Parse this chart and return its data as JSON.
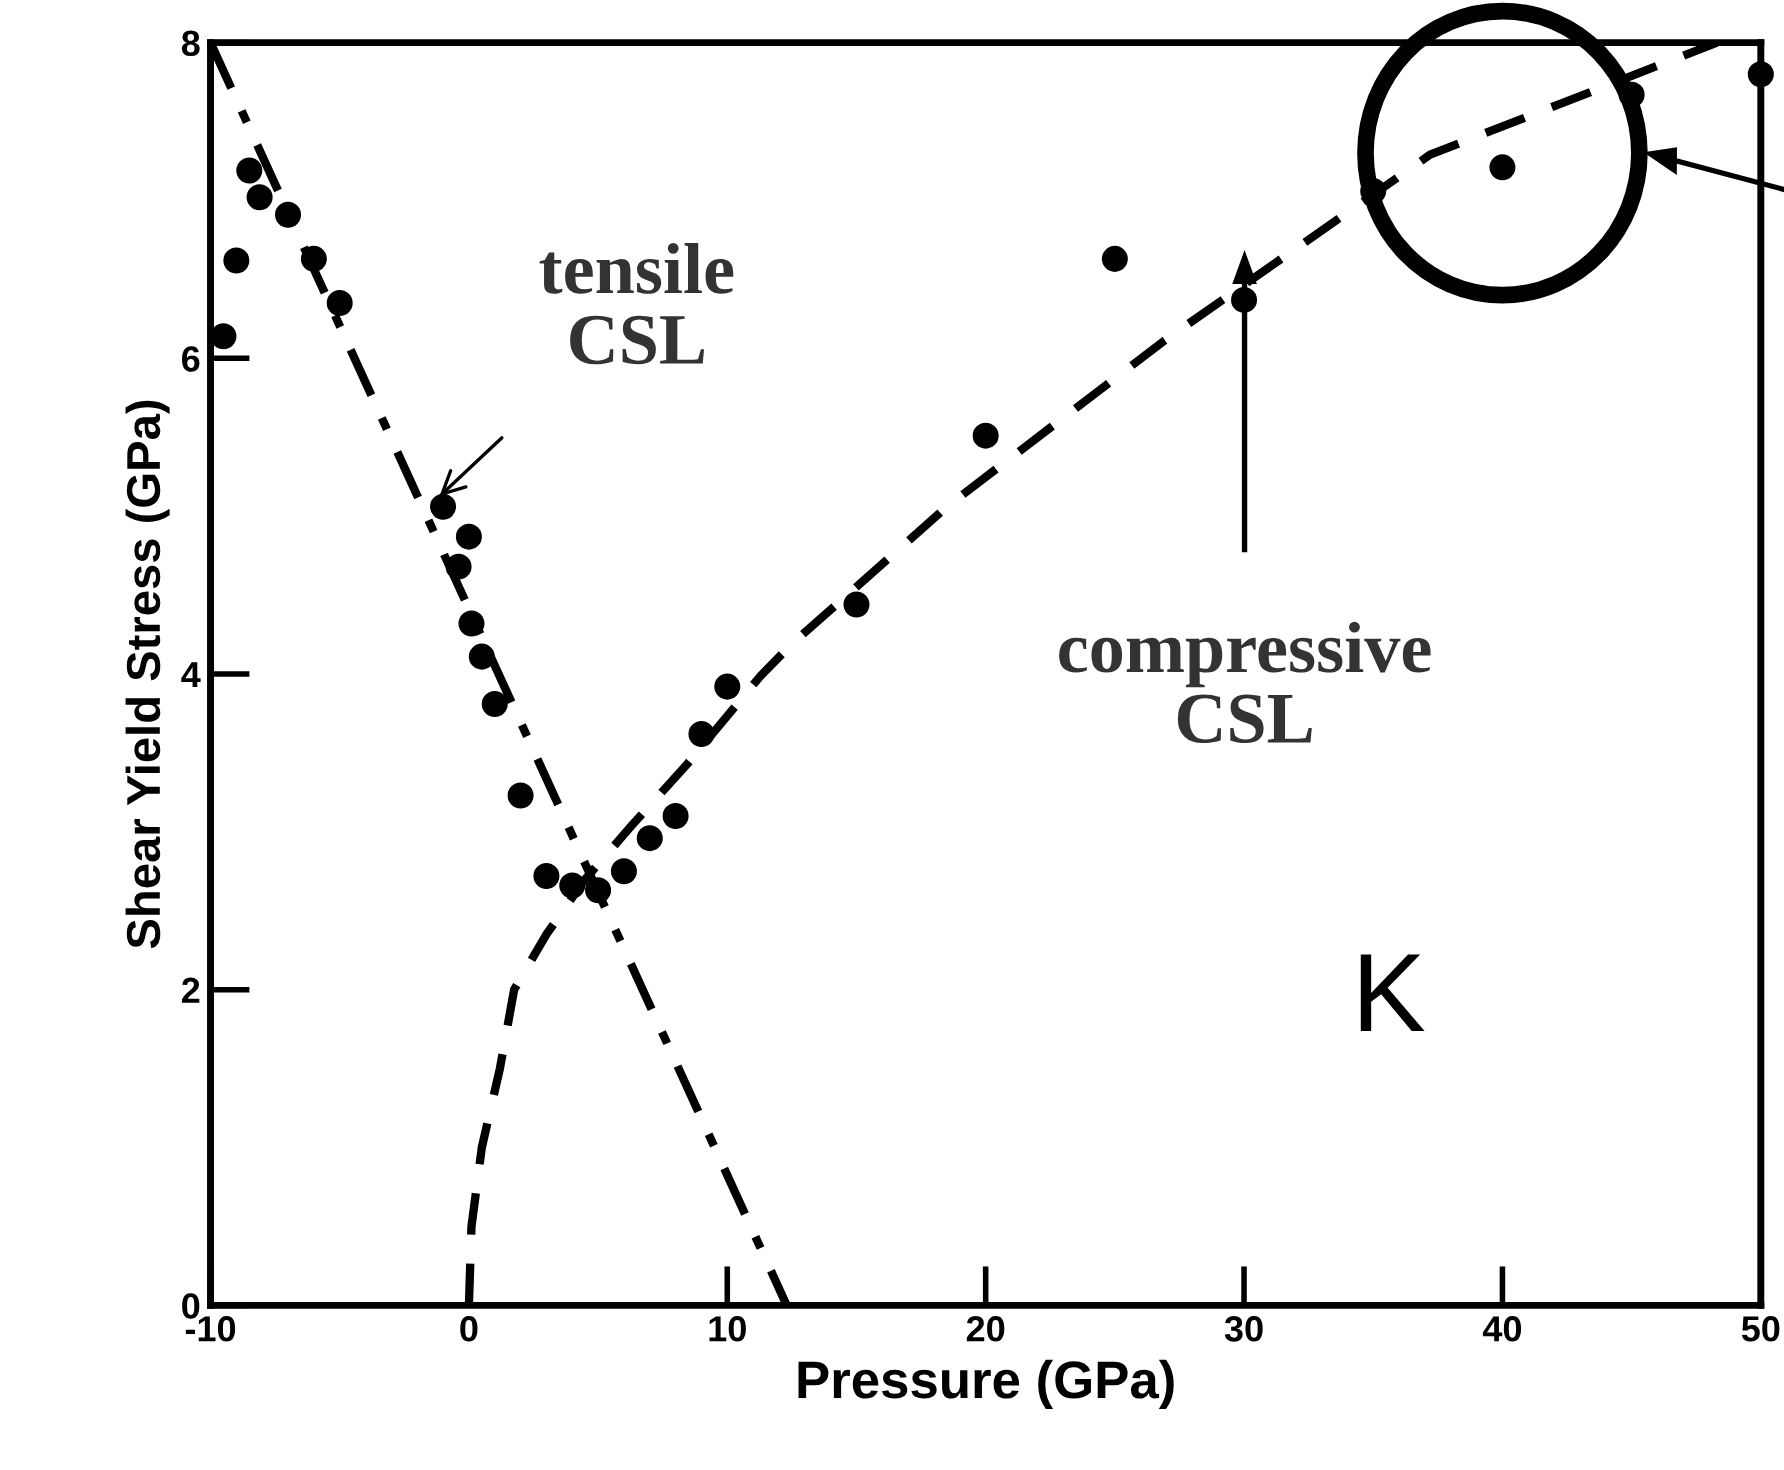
{
  "chart_data": {
    "type": "scatter",
    "xlabel": "Pressure (GPa)",
    "ylabel": "Shear Yield Stress (GPa)",
    "xlim": [
      -10,
      50
    ],
    "ylim": [
      0,
      8
    ],
    "xticks": [
      -10,
      0,
      10,
      20,
      30,
      40,
      50
    ],
    "yticks": [
      0,
      2,
      4,
      6,
      8
    ],
    "grid": false,
    "legend": false,
    "series": [
      {
        "color": "#000000",
        "marker": "circle",
        "x": [
          -9.5,
          -9,
          -8.5,
          -8.1,
          -7,
          -6,
          -5,
          -1,
          0,
          -0.4,
          0.1,
          0.5,
          1,
          2,
          3,
          4,
          5,
          6,
          7,
          8,
          9,
          10,
          15,
          20,
          25,
          30,
          35,
          40,
          45,
          50
        ],
        "values": [
          6.14,
          6.62,
          7.19,
          7.02,
          6.91,
          6.63,
          6.35,
          5.06,
          4.87,
          4.68,
          4.32,
          4.11,
          3.81,
          3.23,
          2.72,
          2.66,
          2.63,
          2.75,
          2.96,
          3.1,
          3.62,
          3.92,
          4.44,
          5.51,
          6.63,
          6.37,
          7.06,
          7.21,
          7.67,
          7.8
        ]
      },
      {
        "type": "line",
        "color": "#000000",
        "marker": "none",
        "line_style": "dashdot",
        "x": [
          -10,
          12.3
        ],
        "values": [
          8,
          0
        ]
      },
      {
        "type": "line",
        "color": "#000000",
        "marker": "none",
        "line_style": "dashed",
        "x": [
          0,
          0.1,
          0.5,
          1.2,
          1.75,
          3,
          4.5,
          6.3,
          8.4,
          11.3,
          12.5,
          18.5,
          26.9,
          37.2,
          48.3
        ],
        "values": [
          0,
          0.5,
          1,
          1.5,
          2,
          2.35,
          2.7,
          3.04,
          3.42,
          3.99,
          4.19,
          5.06,
          6.11,
          7.29,
          8
        ]
      }
    ],
    "annotations": [
      {
        "text": "tensile\nCSL",
        "x": -1.3,
        "y": 5.1
      },
      "compressive\nCSL",
      "K"
    ]
  }
}
